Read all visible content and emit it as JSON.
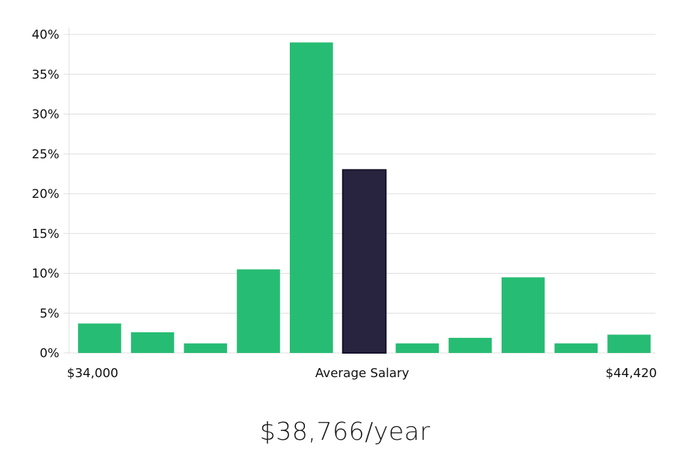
{
  "chart_data": {
    "type": "bar",
    "title": "",
    "xlabel": "Average Salary",
    "ylabel": "",
    "x_range_labels": {
      "min": "$34,000",
      "max": "$44,420"
    },
    "y_ticks": [
      "0%",
      "5%",
      "10%",
      "15%",
      "20%",
      "25%",
      "30%",
      "35%",
      "40%"
    ],
    "ylim": [
      0,
      40
    ],
    "values": [
      3.7,
      2.6,
      1.2,
      10.5,
      39.0,
      23.0,
      1.2,
      1.9,
      9.5,
      1.2,
      2.3
    ],
    "highlight_index": 5,
    "colors": {
      "bar": "#27bc74",
      "highlight": "#28243f",
      "grid": "#dcdcdc"
    }
  },
  "summary": {
    "salary": "$38,766/year"
  }
}
